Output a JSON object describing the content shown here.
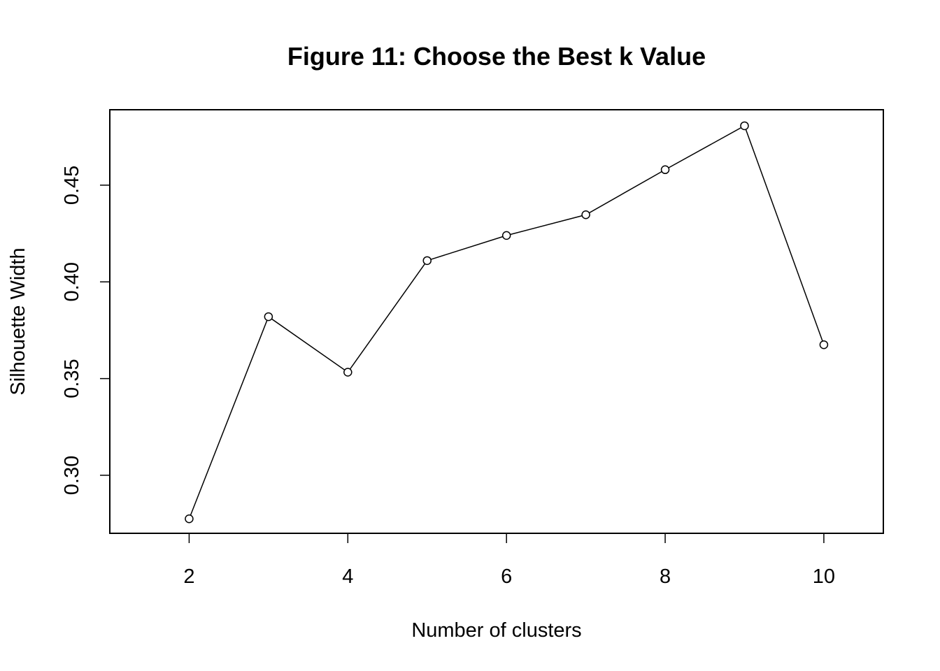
{
  "chart_data": {
    "type": "line",
    "title": "Figure 11: Choose the Best k Value",
    "xlabel": "Number of clusters",
    "ylabel": "Silhouette Width",
    "x": [
      2,
      3,
      4,
      5,
      6,
      7,
      8,
      9,
      10
    ],
    "y": [
      0.2775,
      0.382,
      0.3533,
      0.411,
      0.424,
      0.4347,
      0.458,
      0.4807,
      0.3675
    ],
    "xlim": [
      1,
      10.75
    ],
    "ylim": [
      0.27,
      0.489
    ],
    "x_ticks": [
      2,
      4,
      6,
      8,
      10
    ],
    "x_tick_labels": [
      "2",
      "4",
      "6",
      "8",
      "10"
    ],
    "y_ticks": [
      0.3,
      0.35,
      0.4,
      0.45
    ],
    "y_tick_labels": [
      "0.30",
      "0.35",
      "0.40",
      "0.45"
    ],
    "marker": "open-circle",
    "line_color": "#000000",
    "grid": false,
    "legend": "none"
  }
}
